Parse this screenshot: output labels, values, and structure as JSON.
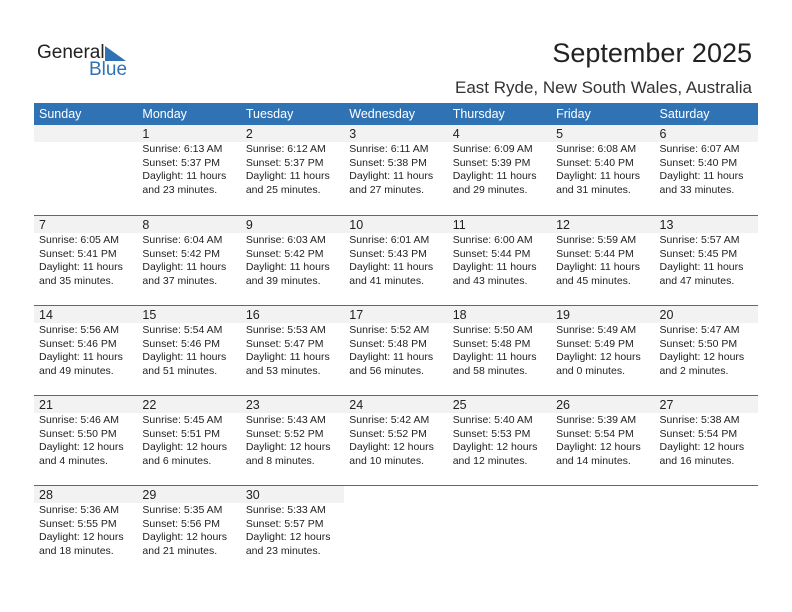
{
  "logo": {
    "text_general": "General",
    "text_blue": "Blue"
  },
  "title": "September 2025",
  "location": "East Ryde, New South Wales, Australia",
  "colors": {
    "accent": "#2f73b5",
    "day_band": "#f2f2f2"
  },
  "weekdays": [
    "Sunday",
    "Monday",
    "Tuesday",
    "Wednesday",
    "Thursday",
    "Friday",
    "Saturday"
  ],
  "start_offset": 1,
  "days": [
    {
      "d": "1",
      "sr": "Sunrise: 6:13 AM",
      "ss": "Sunset: 5:37 PM",
      "dl": "Daylight: 11 hours",
      "dm": "and 23 minutes."
    },
    {
      "d": "2",
      "sr": "Sunrise: 6:12 AM",
      "ss": "Sunset: 5:37 PM",
      "dl": "Daylight: 11 hours",
      "dm": "and 25 minutes."
    },
    {
      "d": "3",
      "sr": "Sunrise: 6:11 AM",
      "ss": "Sunset: 5:38 PM",
      "dl": "Daylight: 11 hours",
      "dm": "and 27 minutes."
    },
    {
      "d": "4",
      "sr": "Sunrise: 6:09 AM",
      "ss": "Sunset: 5:39 PM",
      "dl": "Daylight: 11 hours",
      "dm": "and 29 minutes."
    },
    {
      "d": "5",
      "sr": "Sunrise: 6:08 AM",
      "ss": "Sunset: 5:40 PM",
      "dl": "Daylight: 11 hours",
      "dm": "and 31 minutes."
    },
    {
      "d": "6",
      "sr": "Sunrise: 6:07 AM",
      "ss": "Sunset: 5:40 PM",
      "dl": "Daylight: 11 hours",
      "dm": "and 33 minutes."
    },
    {
      "d": "7",
      "sr": "Sunrise: 6:05 AM",
      "ss": "Sunset: 5:41 PM",
      "dl": "Daylight: 11 hours",
      "dm": "and 35 minutes."
    },
    {
      "d": "8",
      "sr": "Sunrise: 6:04 AM",
      "ss": "Sunset: 5:42 PM",
      "dl": "Daylight: 11 hours",
      "dm": "and 37 minutes."
    },
    {
      "d": "9",
      "sr": "Sunrise: 6:03 AM",
      "ss": "Sunset: 5:42 PM",
      "dl": "Daylight: 11 hours",
      "dm": "and 39 minutes."
    },
    {
      "d": "10",
      "sr": "Sunrise: 6:01 AM",
      "ss": "Sunset: 5:43 PM",
      "dl": "Daylight: 11 hours",
      "dm": "and 41 minutes."
    },
    {
      "d": "11",
      "sr": "Sunrise: 6:00 AM",
      "ss": "Sunset: 5:44 PM",
      "dl": "Daylight: 11 hours",
      "dm": "and 43 minutes."
    },
    {
      "d": "12",
      "sr": "Sunrise: 5:59 AM",
      "ss": "Sunset: 5:44 PM",
      "dl": "Daylight: 11 hours",
      "dm": "and 45 minutes."
    },
    {
      "d": "13",
      "sr": "Sunrise: 5:57 AM",
      "ss": "Sunset: 5:45 PM",
      "dl": "Daylight: 11 hours",
      "dm": "and 47 minutes."
    },
    {
      "d": "14",
      "sr": "Sunrise: 5:56 AM",
      "ss": "Sunset: 5:46 PM",
      "dl": "Daylight: 11 hours",
      "dm": "and 49 minutes."
    },
    {
      "d": "15",
      "sr": "Sunrise: 5:54 AM",
      "ss": "Sunset: 5:46 PM",
      "dl": "Daylight: 11 hours",
      "dm": "and 51 minutes."
    },
    {
      "d": "16",
      "sr": "Sunrise: 5:53 AM",
      "ss": "Sunset: 5:47 PM",
      "dl": "Daylight: 11 hours",
      "dm": "and 53 minutes."
    },
    {
      "d": "17",
      "sr": "Sunrise: 5:52 AM",
      "ss": "Sunset: 5:48 PM",
      "dl": "Daylight: 11 hours",
      "dm": "and 56 minutes."
    },
    {
      "d": "18",
      "sr": "Sunrise: 5:50 AM",
      "ss": "Sunset: 5:48 PM",
      "dl": "Daylight: 11 hours",
      "dm": "and 58 minutes."
    },
    {
      "d": "19",
      "sr": "Sunrise: 5:49 AM",
      "ss": "Sunset: 5:49 PM",
      "dl": "Daylight: 12 hours",
      "dm": "and 0 minutes."
    },
    {
      "d": "20",
      "sr": "Sunrise: 5:47 AM",
      "ss": "Sunset: 5:50 PM",
      "dl": "Daylight: 12 hours",
      "dm": "and 2 minutes."
    },
    {
      "d": "21",
      "sr": "Sunrise: 5:46 AM",
      "ss": "Sunset: 5:50 PM",
      "dl": "Daylight: 12 hours",
      "dm": "and 4 minutes."
    },
    {
      "d": "22",
      "sr": "Sunrise: 5:45 AM",
      "ss": "Sunset: 5:51 PM",
      "dl": "Daylight: 12 hours",
      "dm": "and 6 minutes."
    },
    {
      "d": "23",
      "sr": "Sunrise: 5:43 AM",
      "ss": "Sunset: 5:52 PM",
      "dl": "Daylight: 12 hours",
      "dm": "and 8 minutes."
    },
    {
      "d": "24",
      "sr": "Sunrise: 5:42 AM",
      "ss": "Sunset: 5:52 PM",
      "dl": "Daylight: 12 hours",
      "dm": "and 10 minutes."
    },
    {
      "d": "25",
      "sr": "Sunrise: 5:40 AM",
      "ss": "Sunset: 5:53 PM",
      "dl": "Daylight: 12 hours",
      "dm": "and 12 minutes."
    },
    {
      "d": "26",
      "sr": "Sunrise: 5:39 AM",
      "ss": "Sunset: 5:54 PM",
      "dl": "Daylight: 12 hours",
      "dm": "and 14 minutes."
    },
    {
      "d": "27",
      "sr": "Sunrise: 5:38 AM",
      "ss": "Sunset: 5:54 PM",
      "dl": "Daylight: 12 hours",
      "dm": "and 16 minutes."
    },
    {
      "d": "28",
      "sr": "Sunrise: 5:36 AM",
      "ss": "Sunset: 5:55 PM",
      "dl": "Daylight: 12 hours",
      "dm": "and 18 minutes."
    },
    {
      "d": "29",
      "sr": "Sunrise: 5:35 AM",
      "ss": "Sunset: 5:56 PM",
      "dl": "Daylight: 12 hours",
      "dm": "and 21 minutes."
    },
    {
      "d": "30",
      "sr": "Sunrise: 5:33 AM",
      "ss": "Sunset: 5:57 PM",
      "dl": "Daylight: 12 hours",
      "dm": "and 23 minutes."
    }
  ]
}
